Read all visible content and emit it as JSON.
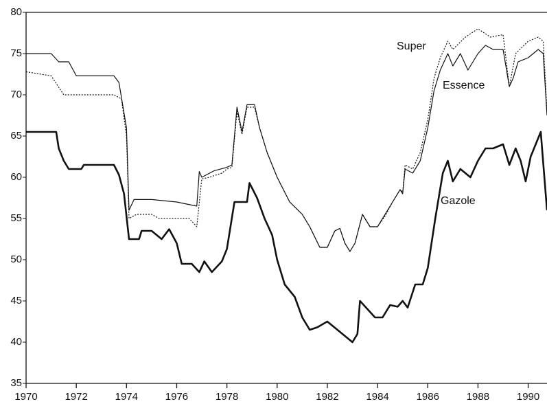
{
  "chart_data": {
    "type": "line",
    "xlim": [
      1970,
      1990.75
    ],
    "ylim": [
      35,
      80
    ],
    "xticks": [
      1970,
      1972,
      1974,
      1976,
      1978,
      1980,
      1982,
      1984,
      1986,
      1988,
      1990
    ],
    "yticks": [
      35,
      40,
      45,
      50,
      55,
      60,
      65,
      70,
      75,
      80
    ],
    "series": [
      {
        "name": "Super",
        "color": "#111111",
        "linestyle": "dotted",
        "linewidth": 1.2,
        "x": [
          1970,
          1971,
          1971.5,
          1973.5,
          1973.8,
          1974,
          1974.1,
          1974.4,
          1975,
          1975.3,
          1976.5,
          1976.8,
          1977,
          1977.3,
          1977.8,
          1978,
          1978.2,
          1978.4,
          1978.6,
          1978.8,
          1979.1,
          1979.3,
          1979.6,
          1980,
          1980.5,
          1981,
          1981.3,
          1981.7,
          1982,
          1982.3,
          1982.5,
          1982.7,
          1982.9,
          1983.1,
          1983.4,
          1983.7,
          1984,
          1984.3,
          1984.6,
          1984.9,
          1985,
          1985.1,
          1985.4,
          1985.7,
          1986,
          1986.25,
          1986.5,
          1986.8,
          1987,
          1987.5,
          1988,
          1988.5,
          1989,
          1989.25,
          1989.5,
          1990,
          1990.4,
          1990.6,
          1990.75
        ],
        "values": [
          72.8,
          72.3,
          70,
          70,
          69.5,
          65,
          55,
          55.5,
          55.5,
          55,
          55,
          54,
          59.8,
          60,
          60.5,
          61,
          61.2,
          68,
          65.2,
          68.5,
          68.5,
          66,
          63,
          60,
          57,
          55.5,
          54,
          51.5,
          51.5,
          53.5,
          53.8,
          52,
          51,
          52,
          55.5,
          54,
          54,
          55.3,
          57,
          58.5,
          58.2,
          61.5,
          61,
          63,
          67,
          72,
          74.5,
          76.5,
          75.5,
          77,
          78,
          77,
          77.3,
          71,
          75,
          76.5,
          77,
          76.5,
          68
        ]
      },
      {
        "name": "Essence",
        "color": "#111111",
        "linestyle": "solid",
        "linewidth": 1.2,
        "x": [
          1970,
          1971,
          1971.3,
          1971.7,
          1972,
          1973.5,
          1973.7,
          1974,
          1974.1,
          1974.3,
          1975,
          1976,
          1976.8,
          1976.9,
          1977,
          1977.5,
          1978,
          1978.2,
          1978.4,
          1978.6,
          1978.8,
          1979.1,
          1979.3,
          1979.6,
          1980,
          1980.5,
          1981,
          1981.3,
          1981.7,
          1982,
          1982.3,
          1982.5,
          1982.7,
          1982.9,
          1983.1,
          1983.4,
          1983.7,
          1984,
          1984.3,
          1984.6,
          1984.9,
          1985,
          1985.1,
          1985.4,
          1985.7,
          1986,
          1986.25,
          1986.5,
          1986.8,
          1987,
          1987.3,
          1987.6,
          1988,
          1988.3,
          1988.6,
          1989,
          1989.25,
          1989.4,
          1989.6,
          1990,
          1990.4,
          1990.6,
          1990.75
        ],
        "values": [
          75,
          75,
          74,
          74,
          72.3,
          72.3,
          71.5,
          66,
          56,
          57.3,
          57.3,
          57,
          56.5,
          60.7,
          60,
          60.8,
          61.2,
          61.5,
          68.5,
          65.5,
          68.8,
          68.8,
          66,
          63,
          60,
          57,
          55.5,
          54,
          51.5,
          51.5,
          53.5,
          53.8,
          52,
          51,
          52,
          55.5,
          54,
          54,
          55.5,
          57,
          58.5,
          58,
          61,
          60.5,
          62,
          66,
          70.5,
          73,
          75,
          73.5,
          75,
          73,
          75,
          76,
          75.5,
          75.5,
          71,
          72,
          74,
          74.5,
          75.5,
          75,
          67.5
        ]
      },
      {
        "name": "Gazole",
        "color": "#111111",
        "linestyle": "solid",
        "linewidth": 2.6,
        "x": [
          1970,
          1971.2,
          1971.3,
          1971.5,
          1971.7,
          1972.2,
          1972.3,
          1973.5,
          1973.7,
          1973.9,
          1974.1,
          1974.5,
          1974.6,
          1975,
          1975.2,
          1975.4,
          1975.7,
          1976,
          1976.2,
          1976.6,
          1976.9,
          1977.1,
          1977.4,
          1977.8,
          1978,
          1978.3,
          1978.8,
          1978.9,
          1979.2,
          1979.5,
          1979.8,
          1980,
          1980.3,
          1980.7,
          1981,
          1981.3,
          1981.6,
          1982,
          1982.4,
          1982.8,
          1983,
          1983.2,
          1983.3,
          1983.6,
          1983.9,
          1984.2,
          1984.5,
          1984.8,
          1985,
          1985.2,
          1985.5,
          1985.8,
          1986,
          1986.3,
          1986.6,
          1986.8,
          1987,
          1987.3,
          1987.7,
          1988,
          1988.3,
          1988.6,
          1989,
          1989.25,
          1989.5,
          1989.7,
          1989.9,
          1990.1,
          1990.5,
          1990.75
        ],
        "values": [
          65.5,
          65.5,
          63.5,
          62,
          61,
          61,
          61.5,
          61.5,
          60.3,
          58,
          52.5,
          52.5,
          53.5,
          53.5,
          53,
          52.5,
          53.7,
          52,
          49.5,
          49.5,
          48.5,
          49.8,
          48.5,
          49.8,
          51.3,
          57,
          57,
          59.3,
          57.5,
          55,
          53,
          50,
          47,
          45.5,
          43,
          41.5,
          41.8,
          42.5,
          41.5,
          40.5,
          40,
          41,
          45,
          44,
          43,
          43,
          44.5,
          44.3,
          45,
          44.2,
          47,
          47,
          49,
          55,
          60.5,
          62,
          59.5,
          61,
          60,
          62,
          63.5,
          63.5,
          64,
          61.5,
          63.5,
          62,
          59.5,
          62.5,
          65.5,
          56
        ]
      }
    ]
  }
}
